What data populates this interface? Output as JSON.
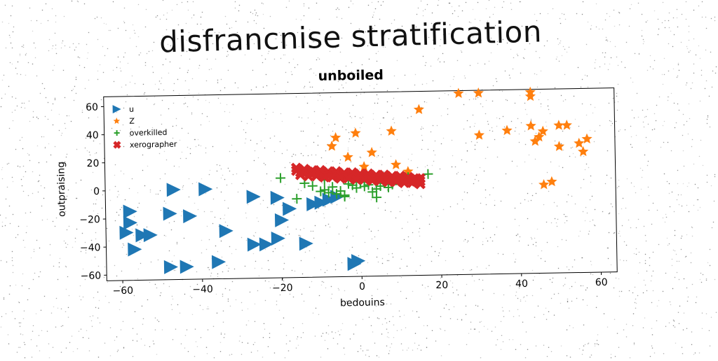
{
  "banner_title": "disfrancnise stratification",
  "colors": {
    "u": "#1f77b4",
    "Z": "#ff7f0e",
    "overkilled": "#2ca02c",
    "xerographer": "#d62728"
  },
  "chart_data": {
    "type": "scatter",
    "title": "unboiled",
    "xlabel": "bedouins",
    "ylabel": "outpraising",
    "xlim": [
      -64,
      64
    ],
    "ylim": [
      -64,
      67
    ],
    "xticks": [
      -60,
      -40,
      -20,
      0,
      20,
      40,
      60
    ],
    "yticks": [
      -60,
      -40,
      -20,
      0,
      20,
      40,
      60
    ],
    "grid": false,
    "legend_position": "top-left",
    "series": [
      {
        "name": "u",
        "marker": "triangle-right",
        "color": "#1f77b4",
        "points": [
          [
            -47,
            0
          ],
          [
            -39,
            0
          ],
          [
            -27,
            -6
          ],
          [
            -21,
            -7
          ],
          [
            -18,
            -15
          ],
          [
            -20,
            -23
          ],
          [
            -21,
            -36
          ],
          [
            -14,
            -40
          ],
          [
            -12,
            -12
          ],
          [
            -10,
            -11
          ],
          [
            -8,
            -9
          ],
          [
            -6,
            -7
          ],
          [
            -34,
            -30
          ],
          [
            -27,
            -40
          ],
          [
            -24,
            -40
          ],
          [
            -58,
            -15
          ],
          [
            -58,
            -23
          ],
          [
            -59,
            -30
          ],
          [
            -55,
            -32
          ],
          [
            -53,
            -32
          ],
          [
            -57,
            -42
          ],
          [
            -48,
            -17
          ],
          [
            -43,
            -19
          ],
          [
            -48,
            -55
          ],
          [
            -44,
            -55
          ],
          [
            -36,
            -52
          ],
          [
            -1,
            -53
          ],
          [
            -2,
            -55
          ]
        ]
      },
      {
        "name": "Z",
        "marker": "star",
        "color": "#ff7f0e",
        "points": [
          [
            25,
            65
          ],
          [
            30,
            65
          ],
          [
            43,
            65
          ],
          [
            43,
            62
          ],
          [
            15,
            54
          ],
          [
            -1,
            38
          ],
          [
            8,
            39
          ],
          [
            -6,
            35
          ],
          [
            -7,
            29
          ],
          [
            3,
            24
          ],
          [
            -3,
            21
          ],
          [
            1,
            14
          ],
          [
            9,
            15
          ],
          [
            12,
            10
          ],
          [
            30,
            35
          ],
          [
            37,
            38
          ],
          [
            43,
            41
          ],
          [
            46,
            37
          ],
          [
            45,
            33
          ],
          [
            44,
            30
          ],
          [
            50,
            41
          ],
          [
            52,
            41
          ],
          [
            50,
            26
          ],
          [
            55,
            28
          ],
          [
            56,
            22
          ],
          [
            57,
            31
          ],
          [
            46,
            -1
          ],
          [
            48,
            1
          ]
        ]
      },
      {
        "name": "overkilled",
        "marker": "plus",
        "color": "#2ca02c",
        "points": [
          [
            -20,
            7
          ],
          [
            -16,
            -8
          ],
          [
            -14,
            3
          ],
          [
            -12,
            1
          ],
          [
            -10,
            -3
          ],
          [
            -9,
            -2
          ],
          [
            -8,
            -4
          ],
          [
            -7,
            0
          ],
          [
            -6,
            -5
          ],
          [
            -5,
            -3
          ],
          [
            -4,
            -6
          ],
          [
            -3,
            2
          ],
          [
            -2,
            1
          ],
          [
            -1,
            -1
          ],
          [
            0,
            3
          ],
          [
            1,
            0
          ],
          [
            2,
            1
          ],
          [
            3,
            -4
          ],
          [
            4,
            -2
          ],
          [
            5,
            0
          ],
          [
            6,
            2
          ],
          [
            7,
            -1
          ],
          [
            8,
            1
          ],
          [
            10,
            4
          ],
          [
            12,
            6
          ],
          [
            14,
            3
          ],
          [
            17,
            8
          ],
          [
            4,
            -8
          ],
          [
            -4,
            -7
          ],
          [
            -6,
            8
          ],
          [
            -9,
            5
          ]
        ]
      },
      {
        "name": "xerographer",
        "marker": "x",
        "color": "#d62728",
        "points": [
          [
            -16,
            12
          ],
          [
            -15,
            11
          ],
          [
            -14,
            11
          ],
          [
            -13,
            11
          ],
          [
            -12,
            10
          ],
          [
            -11,
            10
          ],
          [
            -10,
            10
          ],
          [
            -9,
            9
          ],
          [
            -8,
            9
          ],
          [
            -7,
            9
          ],
          [
            -6,
            9
          ],
          [
            -5,
            8
          ],
          [
            -4,
            8
          ],
          [
            -3,
            8
          ],
          [
            -2,
            8
          ],
          [
            -1,
            7
          ],
          [
            0,
            7
          ],
          [
            1,
            7
          ],
          [
            2,
            7
          ],
          [
            3,
            6
          ],
          [
            4,
            6
          ],
          [
            5,
            6
          ],
          [
            6,
            6
          ],
          [
            7,
            5
          ],
          [
            8,
            5
          ],
          [
            9,
            5
          ],
          [
            10,
            5
          ],
          [
            11,
            4
          ],
          [
            12,
            4
          ],
          [
            13,
            4
          ],
          [
            14,
            3
          ],
          [
            15,
            3
          ],
          [
            -16,
            14
          ],
          [
            -14,
            13
          ],
          [
            -12,
            12
          ],
          [
            -10,
            12
          ],
          [
            -8,
            11
          ],
          [
            -6,
            11
          ],
          [
            -4,
            10
          ],
          [
            -2,
            10
          ],
          [
            0,
            9
          ],
          [
            2,
            9
          ],
          [
            4,
            8
          ],
          [
            6,
            8
          ],
          [
            8,
            7
          ],
          [
            10,
            7
          ],
          [
            12,
            6
          ],
          [
            14,
            5
          ],
          [
            15,
            5
          ],
          [
            -15,
            9
          ],
          [
            -13,
            8
          ],
          [
            -11,
            8
          ],
          [
            -9,
            7
          ],
          [
            -7,
            7
          ],
          [
            -5,
            6
          ],
          [
            -3,
            6
          ],
          [
            -1,
            5
          ],
          [
            1,
            5
          ],
          [
            3,
            4
          ],
          [
            5,
            4
          ],
          [
            7,
            3
          ],
          [
            9,
            3
          ],
          [
            11,
            2
          ],
          [
            13,
            2
          ],
          [
            15,
            1
          ]
        ]
      }
    ]
  }
}
